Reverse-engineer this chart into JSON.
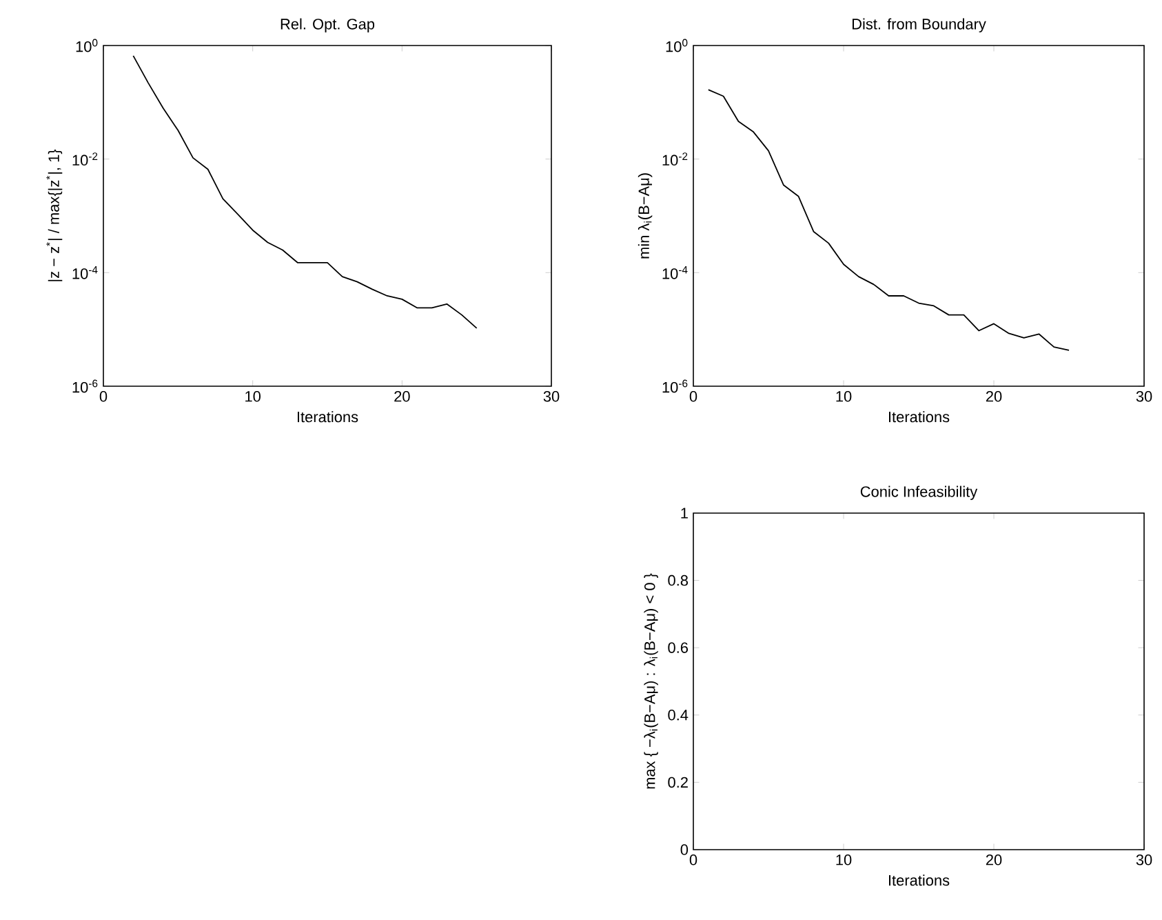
{
  "chart_data": [
    {
      "type": "line",
      "title": "Rel. Opt. Gap",
      "xlabel": "Iterations",
      "ylabel": "|z − z$^{*}$| / max{|z$^{*}$|, 1}",
      "log": "y",
      "x": [
        2,
        3,
        4,
        5,
        6,
        7,
        8,
        9,
        10,
        11,
        12,
        13,
        14,
        15,
        16,
        17,
        18,
        19,
        20,
        21,
        22,
        23,
        24,
        25
      ],
      "series": [
        {
          "color": "#000000",
          "values": [
            0.66,
            0.22,
            0.079,
            0.032,
            0.0105,
            0.0066,
            0.002,
            0.00107,
            0.00056,
            0.00034,
            0.00025,
            0.00015,
            0.00015,
            0.00015,
            8.5e-05,
            6.9e-05,
            5.1e-05,
            3.9e-05,
            3.4e-05,
            2.4e-05,
            2.4e-05,
            2.8e-05,
            1.8e-05,
            1.05e-05
          ]
        }
      ],
      "xlim": [
        0,
        30
      ],
      "xticks": [
        0,
        10,
        20,
        30
      ],
      "ylim": [
        1e-06,
        1
      ],
      "yticks": [
        {
          "value": 1e-06,
          "label": "10$^{-6}$"
        },
        {
          "value": 0.0001,
          "label": "10$^{-4}$"
        },
        {
          "value": 0.01,
          "label": "10$^{-2}$"
        },
        {
          "value": 1,
          "label": "10$^{0}$"
        }
      ]
    },
    {
      "type": "line",
      "title": "Dist. from Boundary",
      "xlabel": "Iterations",
      "ylabel": "min  λ$_{i}$(B−Aμ)",
      "log": "y",
      "x": [
        1,
        2,
        3,
        4,
        5,
        6,
        7,
        8,
        9,
        10,
        11,
        12,
        13,
        14,
        15,
        16,
        17,
        18,
        19,
        20,
        21,
        22,
        23,
        24,
        25
      ],
      "series": [
        {
          "color": "#000000",
          "values": [
            0.166,
            0.128,
            0.046,
            0.03,
            0.014,
            0.0035,
            0.0022,
            0.00053,
            0.00033,
            0.00014,
            8.5e-05,
            6.2e-05,
            3.9e-05,
            3.9e-05,
            2.9e-05,
            2.6e-05,
            1.8e-05,
            1.8e-05,
            9.5e-06,
            1.26e-05,
            8.5e-06,
            7.1e-06,
            8.3e-06,
            4.9e-06,
            4.3e-06
          ]
        }
      ],
      "xlim": [
        0,
        30
      ],
      "xticks": [
        0,
        10,
        20,
        30
      ],
      "ylim": [
        1e-06,
        1
      ],
      "yticks": [
        {
          "value": 1e-06,
          "label": "10$^{-6}$"
        },
        {
          "value": 0.0001,
          "label": "10$^{-4}$"
        },
        {
          "value": 0.01,
          "label": "10$^{-2}$"
        },
        {
          "value": 1,
          "label": "10$^{0}$"
        }
      ]
    },
    {
      "type": "line",
      "title": "Conic Infeasibility",
      "xlabel": "Iterations",
      "ylabel": "max { −λ$_{i}$(B−Aμ) : λ$_{i}$(B−Aμ) < 0 }",
      "xlim": [
        0,
        30
      ],
      "xticks": [
        0,
        10,
        20,
        30
      ],
      "ylim": [
        0,
        1
      ],
      "yticks": [
        0,
        0.2,
        0.4,
        0.6,
        0.8,
        1
      ]
    }
  ]
}
